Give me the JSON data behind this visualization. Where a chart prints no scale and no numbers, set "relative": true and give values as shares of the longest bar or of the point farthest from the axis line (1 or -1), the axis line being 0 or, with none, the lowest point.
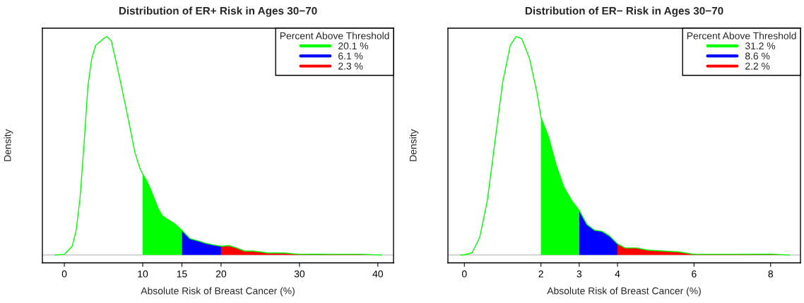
{
  "chart_data": [
    {
      "type": "area",
      "title": "Distribution of ER+ Risk in Ages 30−70",
      "xlabel": "Absolute Risk of Breast Cancer (%)",
      "ylabel": "Density",
      "legend_title": "Percent Above Threshold",
      "legend": "top right",
      "relative": true,
      "tick_labels": "x",
      "grid": false,
      "xlim": [
        -2.8,
        42
      ],
      "xticks": [
        0,
        10,
        15,
        20,
        30,
        40
      ],
      "ref_lines": [
        {
          "axis": "y",
          "value": 0,
          "color": "#bebebe"
        }
      ],
      "series": [
        {
          "type": "line",
          "color": "#00ff00",
          "x": [
            -1.2,
            0,
            1,
            1.5,
            2,
            2.5,
            3,
            3.5,
            4,
            5,
            5.4,
            6,
            7,
            8,
            9,
            9.6,
            10,
            10.5,
            11,
            12,
            12.5,
            13,
            14,
            15,
            16,
            17,
            18,
            19,
            20,
            21,
            22,
            23,
            24,
            25,
            26,
            28,
            30,
            32,
            34,
            36,
            38,
            40.5
          ],
          "values": [
            0,
            0.003,
            0.04,
            0.11,
            0.26,
            0.5,
            0.77,
            0.9,
            0.96,
            0.99,
            1.0,
            0.98,
            0.82,
            0.65,
            0.47,
            0.4,
            0.37,
            0.34,
            0.3,
            0.21,
            0.18,
            0.167,
            0.145,
            0.113,
            0.075,
            0.065,
            0.054,
            0.046,
            0.04,
            0.043,
            0.032,
            0.018,
            0.018,
            0.014,
            0.009,
            0.009,
            0.003,
            0.004,
            0.003,
            0.003,
            0.003,
            0
          ]
        },
        {
          "name": "20.1 %",
          "color": "#00ff00",
          "x": [
            10,
            10.5,
            11,
            12,
            12.5,
            13,
            14,
            15
          ],
          "values": [
            0.37,
            0.34,
            0.3,
            0.21,
            0.18,
            0.167,
            0.145,
            0.113
          ]
        },
        {
          "name": "6.1 %",
          "color": "#0000ff",
          "x": [
            15,
            16,
            17,
            18,
            19,
            20
          ],
          "values": [
            0.113,
            0.075,
            0.065,
            0.054,
            0.046,
            0.04
          ]
        },
        {
          "name": "2.3 %",
          "color": "#ff0000",
          "x": [
            20,
            21,
            22,
            23,
            24,
            25,
            26,
            28,
            30,
            32,
            34,
            36,
            38,
            40.5
          ],
          "values": [
            0.04,
            0.043,
            0.032,
            0.018,
            0.018,
            0.014,
            0.009,
            0.009,
            0.003,
            0.004,
            0.003,
            0.003,
            0.003,
            0
          ]
        }
      ]
    },
    {
      "type": "area",
      "title": "Distribution of ER− Risk in Ages 30−70",
      "xlabel": "Absolute Risk of Breast Cancer (%)",
      "ylabel": "Density",
      "legend_title": "Percent Above Threshold",
      "legend": "top right",
      "relative": true,
      "tick_labels": "x",
      "grid": false,
      "xlim": [
        -0.43,
        8.78
      ],
      "xticks": [
        0,
        2,
        3,
        4,
        6,
        8
      ],
      "ref_lines": [
        {
          "axis": "y",
          "value": 0,
          "color": "#bebebe"
        }
      ],
      "series": [
        {
          "type": "line",
          "color": "#00ff00",
          "x": [
            -0.1,
            0,
            0.2,
            0.4,
            0.6,
            0.8,
            1.0,
            1.2,
            1.35,
            1.5,
            1.7,
            1.9,
            2.0,
            2.2,
            2.4,
            2.6,
            2.8,
            3.0,
            3.2,
            3.4,
            3.6,
            3.8,
            4.0,
            4.2,
            4.5,
            4.8,
            5.2,
            5.6,
            6.0,
            7.0,
            8.0,
            8.5
          ],
          "values": [
            0,
            0.001,
            0.01,
            0.08,
            0.25,
            0.52,
            0.79,
            0.96,
            1.0,
            0.99,
            0.9,
            0.74,
            0.63,
            0.54,
            0.41,
            0.31,
            0.25,
            0.204,
            0.14,
            0.113,
            0.108,
            0.086,
            0.051,
            0.032,
            0.032,
            0.022,
            0.018,
            0.014,
            0.003,
            0.003,
            0.004,
            0
          ]
        },
        {
          "name": "31.2 %",
          "color": "#00ff00",
          "x": [
            2.0,
            2.2,
            2.4,
            2.6,
            2.8,
            3.0
          ],
          "values": [
            0.63,
            0.54,
            0.41,
            0.31,
            0.25,
            0.204
          ]
        },
        {
          "name": "8.6 %",
          "color": "#0000ff",
          "x": [
            3.0,
            3.2,
            3.4,
            3.6,
            3.8,
            4.0
          ],
          "values": [
            0.204,
            0.14,
            0.113,
            0.108,
            0.086,
            0.051
          ]
        },
        {
          "name": "2.2 %",
          "color": "#ff0000",
          "x": [
            4.0,
            4.2,
            4.5,
            4.8,
            5.2,
            5.6,
            6.0,
            7.0,
            8.0,
            8.5
          ],
          "values": [
            0.051,
            0.032,
            0.032,
            0.022,
            0.018,
            0.014,
            0.003,
            0.003,
            0.004,
            0
          ]
        }
      ]
    }
  ]
}
